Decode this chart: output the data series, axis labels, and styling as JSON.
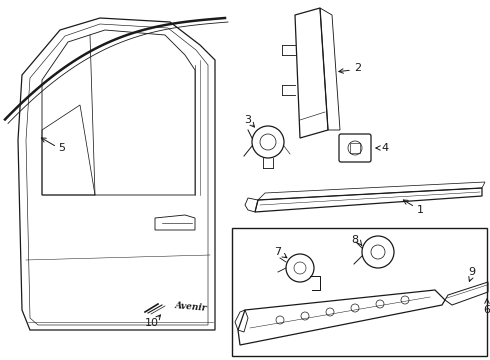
{
  "bg_color": "#ffffff",
  "line_color": "#1a1a1a",
  "fig_width": 4.9,
  "fig_height": 3.6,
  "dpi": 100,
  "label_fontsize": 8,
  "lw": 0.9
}
